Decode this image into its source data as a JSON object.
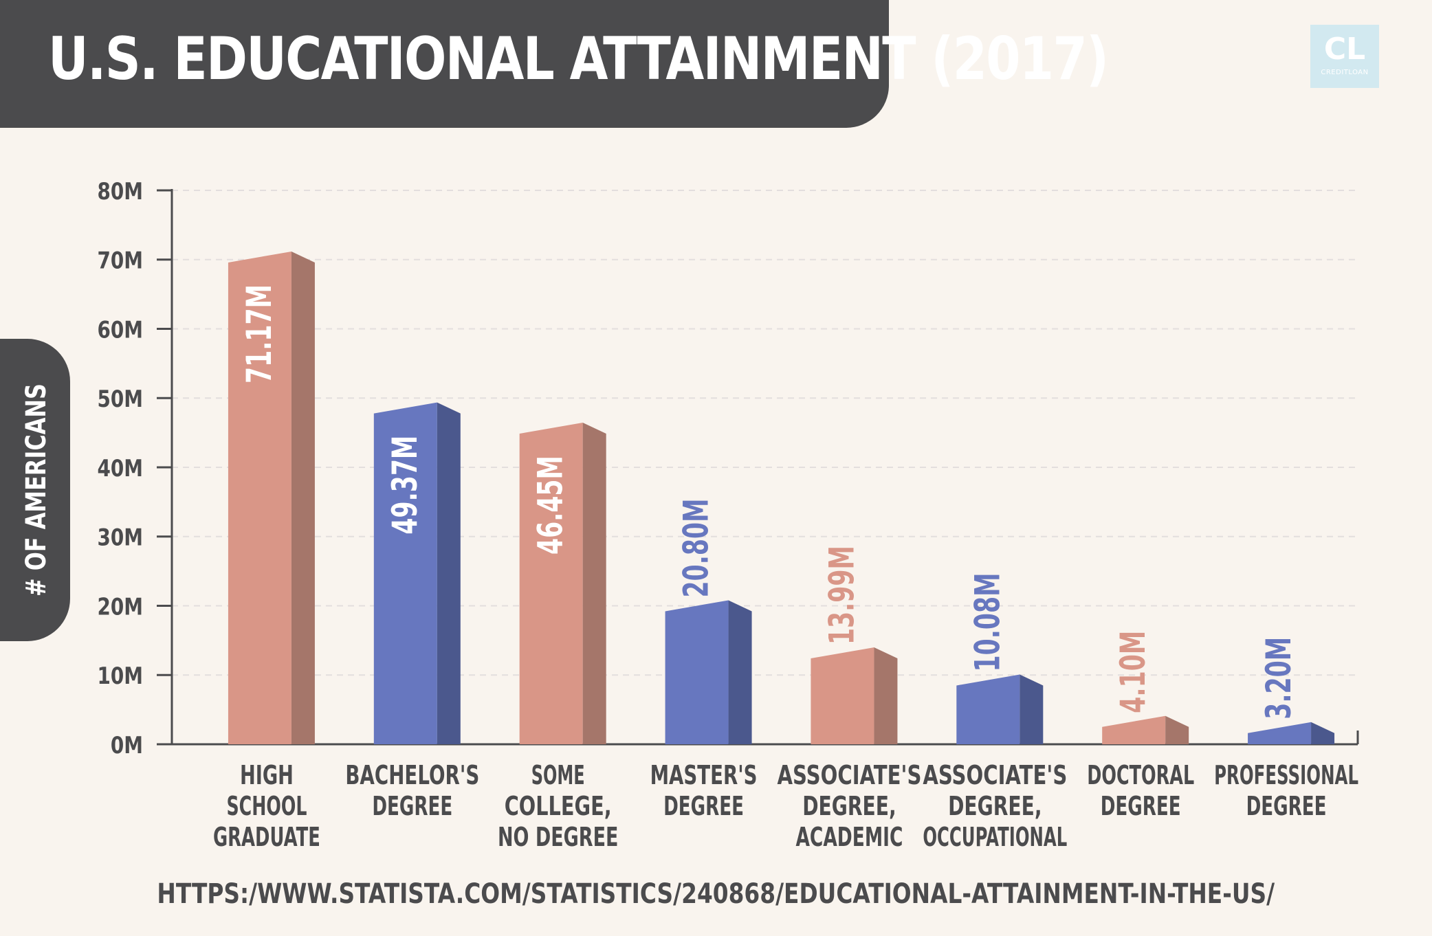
{
  "title": "U.S. EDUCATIONAL ATTAINMENT (2017)",
  "logo": {
    "letters": "CL",
    "name": "CREDITLOAN"
  },
  "source": "HTTPS:/WWW.STATISTA.COM/STATISTICS/240868/EDUCATIONAL-ATTAINMENT-IN-THE-US/",
  "colors": {
    "background": "#f9f4ee",
    "banner": "#4b4b4d",
    "salmon": "#d99687",
    "salmon_side": "#a5766a",
    "blue": "#6777bf",
    "blue_side": "#4b588d",
    "grid": "#e3dedd",
    "axis": "#4b4b4d",
    "label_white": "#ffffff"
  },
  "chart_data": {
    "type": "bar",
    "title": "U.S. EDUCATIONAL ATTAINMENT (2017)",
    "ylabel": "# OF AMERICANS",
    "xlabel": "",
    "ylim": [
      0,
      80
    ],
    "yticks": [
      "0M",
      "10M",
      "20M",
      "30M",
      "40M",
      "50M",
      "60M",
      "70M",
      "80M"
    ],
    "grid": true,
    "categories": [
      [
        "HIGH",
        "SCHOOL",
        "GRADUATE"
      ],
      [
        "BACHELOR'S",
        "DEGREE"
      ],
      [
        "SOME",
        "COLLEGE,",
        "NO DEGREE"
      ],
      [
        "MASTER'S",
        "DEGREE"
      ],
      [
        "ASSOCIATE'S",
        "DEGREE,",
        "ACADEMIC"
      ],
      [
        "ASSOCIATE'S",
        "DEGREE,",
        "OCCUPATIONAL"
      ],
      [
        "DOCTORAL",
        "DEGREE"
      ],
      [
        "PROFESSIONAL",
        "DEGREE"
      ]
    ],
    "values": [
      71.17,
      49.37,
      46.45,
      20.8,
      13.99,
      10.08,
      4.1,
      3.2
    ],
    "labels": [
      "71.17M",
      "49.37M",
      "46.45M",
      "20.80M",
      "13.99M",
      "10.08M",
      "4.10M",
      "3.20M"
    ],
    "bar_colors": [
      "salmon",
      "blue",
      "salmon",
      "blue",
      "salmon",
      "blue",
      "salmon",
      "blue"
    ]
  }
}
